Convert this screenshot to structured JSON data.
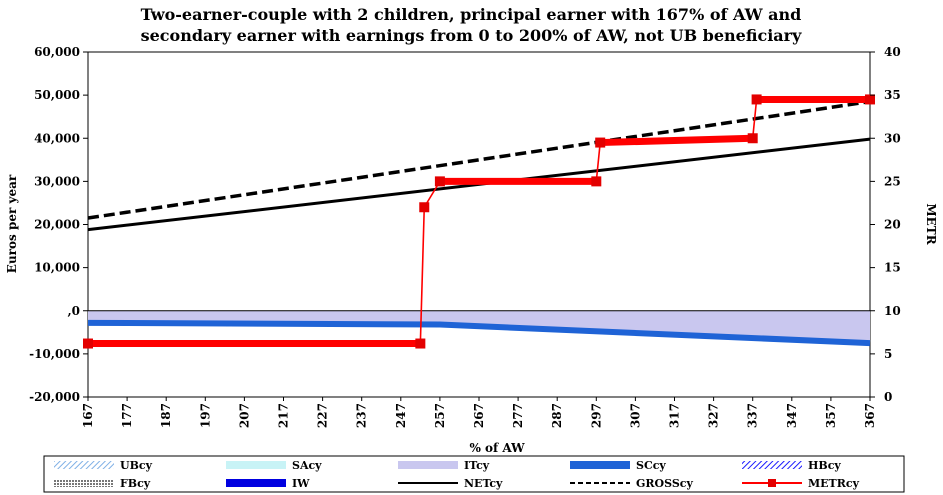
{
  "chart_data": {
    "type": "line",
    "title": [
      "Two-earner-couple with 2 children, principal earner with 167% of AW and",
      "secondary earner with earnings from 0 to 200% of AW, not UB beneficiary"
    ],
    "xlabel": "% of AW",
    "ylabel": "Euros per year",
    "y2label": "METR",
    "ylim": [
      -20000,
      60000
    ],
    "y2lim": [
      0,
      40
    ],
    "yticks": [
      "60,000",
      "50,000",
      "40,000",
      "30,000",
      "20,000",
      "10,000",
      ",0",
      "-10,000",
      "-20,000"
    ],
    "y2ticks": [
      "40",
      "35",
      "30",
      "25",
      "20",
      "15",
      "10",
      "5",
      "0"
    ],
    "xticks": [
      "167",
      "177",
      "187",
      "197",
      "207",
      "217",
      "227",
      "237",
      "247",
      "257",
      "267",
      "277",
      "287",
      "297",
      "307",
      "317",
      "327",
      "337",
      "347",
      "357",
      "367"
    ],
    "xrange": [
      167,
      367
    ],
    "series": [
      {
        "name": "GROSScy",
        "style": "dashed-black",
        "x": [
          167,
          367
        ],
        "y": [
          21500,
          48500
        ]
      },
      {
        "name": "NETcy",
        "style": "solid-black",
        "x": [
          167,
          367
        ],
        "y": [
          18800,
          39800
        ]
      },
      {
        "name": "ITcy",
        "style": "area-lavender",
        "x": [
          167,
          257,
          367
        ],
        "y": [
          -2500,
          -3500,
          -7500
        ]
      },
      {
        "name": "SCcy",
        "style": "band-blue",
        "x": [
          167,
          257,
          367
        ],
        "y": [
          -2800,
          -3200,
          -7500
        ]
      },
      {
        "name": "METRcy",
        "axis": "right",
        "style": "step-red",
        "x": [
          167,
          252,
          253,
          257,
          297,
          298,
          337,
          338,
          367
        ],
        "y": [
          6.2,
          6.2,
          22,
          25,
          25,
          29.5,
          30,
          34.5,
          34.5
        ]
      }
    ],
    "legend": {
      "placement": "bottom",
      "rows": [
        [
          {
            "label": "UBcy",
            "swatch": "hatch-lightblue"
          },
          {
            "label": "SAcy",
            "swatch": "fill-cyan"
          },
          {
            "label": "ITcy",
            "swatch": "fill-lavender"
          },
          {
            "label": "SCcy",
            "swatch": "fill-blue"
          },
          {
            "label": "HBcy",
            "swatch": "hatch-blue"
          }
        ],
        [
          {
            "label": "FBcy",
            "swatch": "hatch-gray"
          },
          {
            "label": "IW",
            "swatch": "fill-darkblue"
          },
          {
            "label": "NETcy",
            "swatch": "line-solid"
          },
          {
            "label": "GROSScy",
            "swatch": "line-dashed"
          },
          {
            "label": "METRcy",
            "swatch": "line-red-marker"
          }
        ]
      ]
    }
  },
  "colors": {
    "gross": "#000000",
    "net": "#000000",
    "itcy": "#c9c7ef",
    "sccy": "#1f63d6",
    "metr": "#ff0000",
    "metr_marker": "#e30000"
  }
}
